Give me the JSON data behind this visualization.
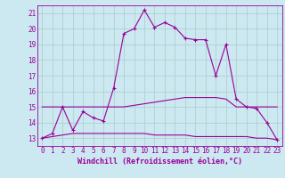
{
  "xlabel": "Windchill (Refroidissement éolien,°C)",
  "ylabel": "",
  "bg_color": "#cce8f0",
  "line_color": "#990099",
  "grid_color": "#aacccc",
  "x_ticks": [
    0,
    1,
    2,
    3,
    4,
    5,
    6,
    7,
    8,
    9,
    10,
    11,
    12,
    13,
    14,
    15,
    16,
    17,
    18,
    19,
    20,
    21,
    22,
    23
  ],
  "y_ticks": [
    13,
    14,
    15,
    16,
    17,
    18,
    19,
    20,
    21
  ],
  "xlim": [
    -0.5,
    23.5
  ],
  "ylim": [
    12.5,
    21.5
  ],
  "series1_x": [
    0,
    1,
    2,
    3,
    4,
    5,
    6,
    7,
    8,
    9,
    10,
    11,
    12,
    13,
    14,
    15,
    16,
    17,
    18,
    19,
    20,
    21,
    22,
    23
  ],
  "series1_y": [
    13.0,
    13.3,
    15.0,
    13.5,
    14.7,
    14.3,
    14.1,
    16.2,
    19.7,
    20.0,
    21.2,
    20.1,
    20.4,
    20.1,
    19.4,
    19.3,
    19.3,
    17.0,
    19.0,
    15.5,
    15.0,
    14.9,
    14.0,
    12.9
  ],
  "series2_x": [
    0,
    1,
    2,
    3,
    4,
    5,
    6,
    7,
    8,
    9,
    10,
    11,
    12,
    13,
    14,
    15,
    16,
    17,
    18,
    19,
    20,
    21,
    22,
    23
  ],
  "series2_y": [
    15.0,
    15.0,
    15.0,
    15.0,
    15.0,
    15.0,
    15.0,
    15.0,
    15.0,
    15.1,
    15.2,
    15.3,
    15.4,
    15.5,
    15.6,
    15.6,
    15.6,
    15.6,
    15.5,
    15.0,
    15.0,
    15.0,
    15.0,
    15.0
  ],
  "series3_x": [
    0,
    1,
    2,
    3,
    4,
    5,
    6,
    7,
    8,
    9,
    10,
    11,
    12,
    13,
    14,
    15,
    16,
    17,
    18,
    19,
    20,
    21,
    22,
    23
  ],
  "series3_y": [
    13.0,
    13.1,
    13.2,
    13.3,
    13.3,
    13.3,
    13.3,
    13.3,
    13.3,
    13.3,
    13.3,
    13.2,
    13.2,
    13.2,
    13.2,
    13.1,
    13.1,
    13.1,
    13.1,
    13.1,
    13.1,
    13.0,
    13.0,
    12.9
  ],
  "tick_fontsize": 5.5,
  "label_fontsize": 6.0
}
